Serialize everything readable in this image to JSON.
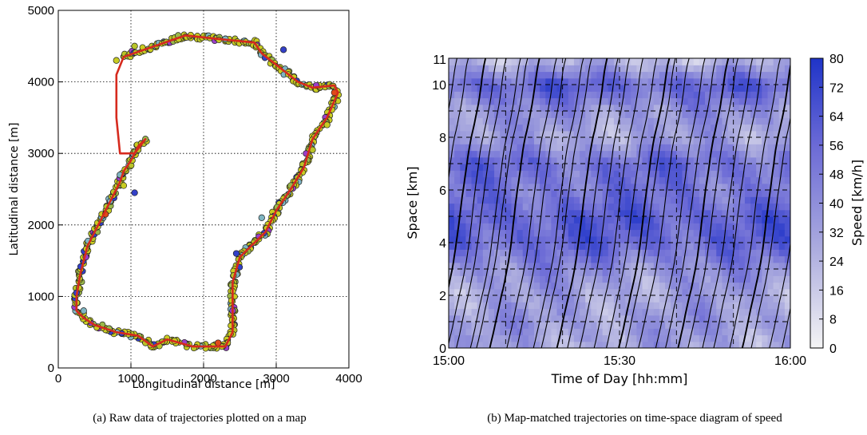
{
  "chart_data": [
    {
      "type": "scatter",
      "caption": "(a)  Raw data of trajectories plotted on a map",
      "xlabel": "Longitudinal distance [m]",
      "ylabel": "Latitudinal distance [m]",
      "xlim": [
        0,
        4000
      ],
      "ylim": [
        0,
        5000
      ],
      "xticks": [
        "0",
        "1000",
        "2000",
        "3000",
        "4000"
      ],
      "yticks": [
        "0",
        "1000",
        "2000",
        "3000",
        "4000",
        "5000"
      ],
      "grid": true,
      "colors": {
        "route": "#d62a1e",
        "points": [
          "#c8cc22",
          "#b8c428",
          "#9ab84a",
          "#7fb5c2",
          "#3340c8",
          "#9a3ec8",
          "#e04a1a"
        ]
      },
      "series": [
        {
          "x": [
            900,
            1750,
            2200,
            2700,
            2800,
            3300,
            3500,
            3800,
            3850,
            3700,
            3500,
            3380,
            3200,
            3000,
            2850,
            2650,
            2500,
            2400,
            2400,
            2400,
            2300,
            1850,
            1500,
            1300,
            1100,
            800,
            500,
            350,
            250,
            250,
            300,
            400,
            600,
            750,
            850,
            900,
            1000,
            1100,
            1200,
            1050,
            850,
            800,
            800,
            900
          ],
          "y": [
            4350,
            4650,
            4600,
            4550,
            4400,
            4000,
            3920,
            3950,
            3850,
            3500,
            3200,
            2800,
            2500,
            2200,
            1900,
            1700,
            1550,
            1200,
            800,
            500,
            300,
            300,
            400,
            300,
            450,
            500,
            600,
            700,
            800,
            1000,
            1300,
            1700,
            2100,
            2400,
            2600,
            2750,
            2900,
            3100,
            3200,
            3000,
            3000,
            3500,
            4100,
            4350
          ]
        },
        {
          "name": "",
          "x": [
            800,
            1050,
            1650,
            2300,
            3100,
            3550,
            3800,
            3700,
            3500,
            3200,
            2800,
            2450,
            2400,
            2200,
            1600,
            1200,
            700,
            350,
            250,
            380,
            650,
            900,
            1100,
            1200,
            850,
            1050
          ],
          "y": [
            4300,
            4500,
            4650,
            4600,
            4450,
            3950,
            3850,
            3400,
            3050,
            2550,
            2100,
            1600,
            800,
            350,
            380,
            350,
            550,
            800,
            1050,
            1550,
            2150,
            2550,
            3050,
            3200,
            2700,
            2450
          ]
        }
      ]
    },
    {
      "type": "heatmap",
      "caption": "(b)  Map-matched trajectories on time-space diagram of speed",
      "xlabel": "Time of Day [hh:mm]",
      "ylabel": "Space [km]",
      "xticks": [
        "15:00",
        "15:30",
        "16:00"
      ],
      "yticks": [
        "0",
        "2",
        "4",
        "6",
        "8",
        "10",
        "11"
      ],
      "ylim": [
        0,
        11
      ],
      "xlim": [
        "15:00",
        "16:00"
      ],
      "colorbar": {
        "label": "Speed [km/h]",
        "ticks": [
          "0",
          "8",
          "16",
          "24",
          "32",
          "40",
          "48",
          "56",
          "64",
          "72",
          "80"
        ],
        "range": [
          0,
          80
        ],
        "colors": [
          "#f2f2f2",
          "#2337c8"
        ]
      },
      "speed_profile": {
        "space_km": [
          0,
          1,
          2,
          3,
          4,
          5,
          6,
          7,
          8,
          9,
          10,
          11
        ],
        "speed_kmh": [
          30,
          35,
          30,
          40,
          58,
          60,
          50,
          55,
          30,
          38,
          60,
          20
        ]
      },
      "trajectories": {
        "count": 34,
        "travel_time_min": 14,
        "color": "#000000"
      },
      "grid": true
    }
  ]
}
